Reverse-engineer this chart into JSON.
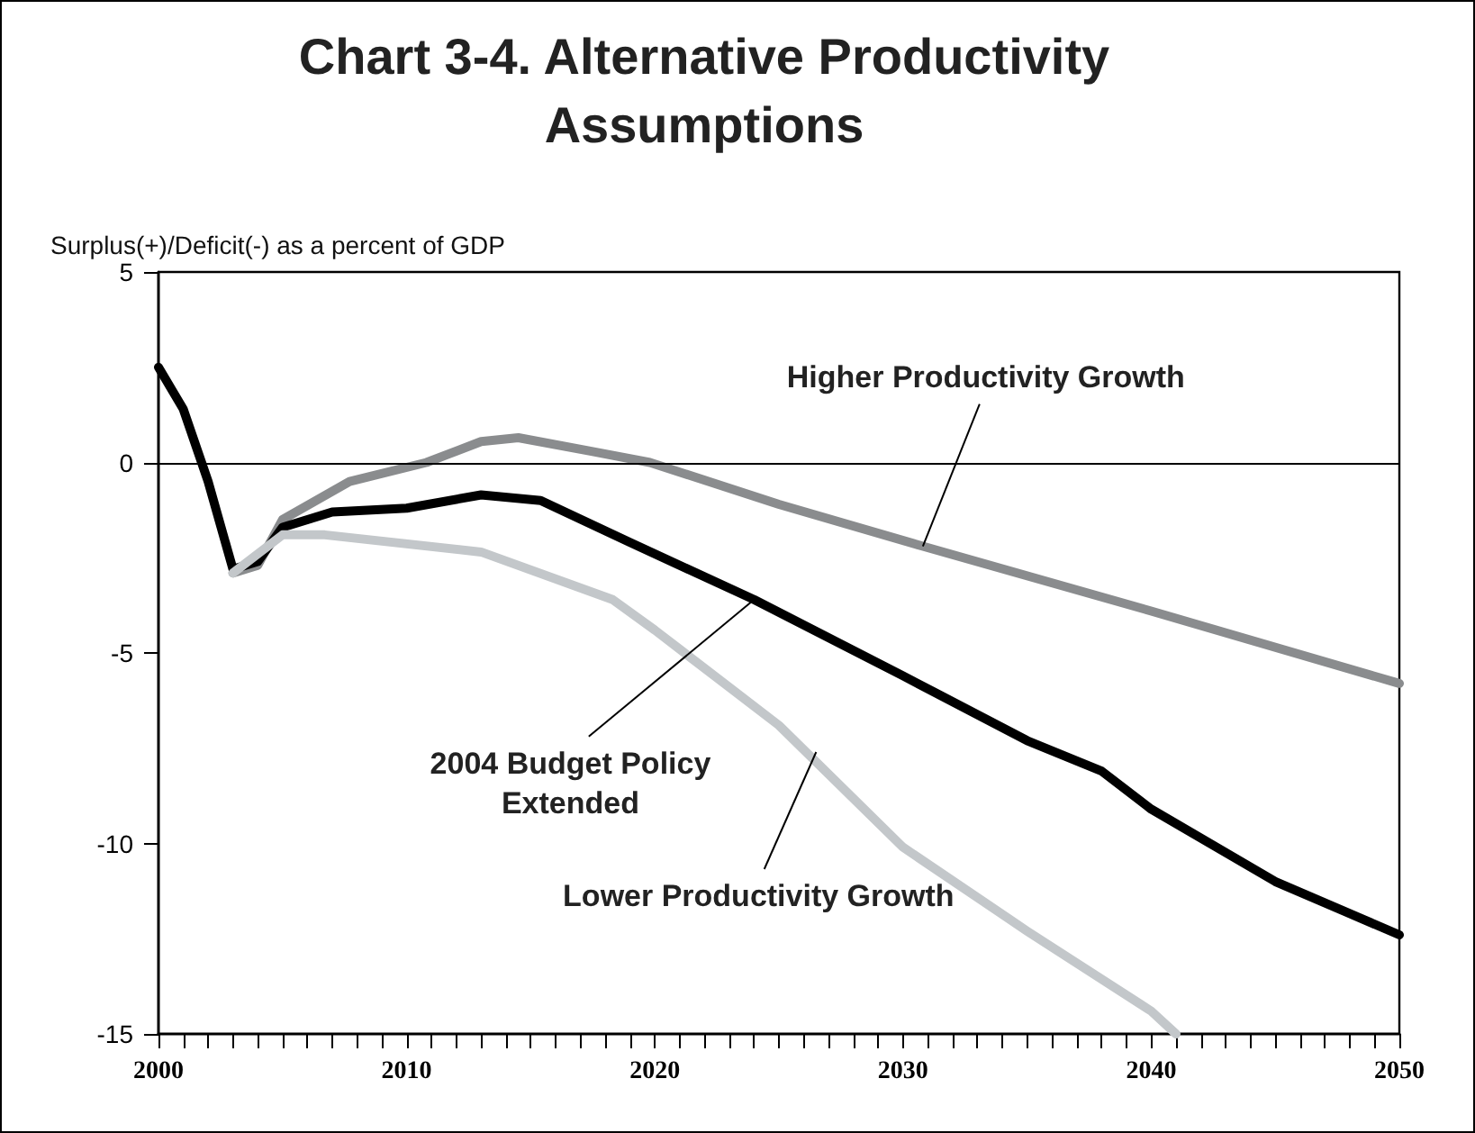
{
  "chart_data": {
    "type": "line",
    "title": "Chart 3-4.  Alternative Productivity Assumptions",
    "ylabel": "Surplus(+)/Deficit(-) as a percent of GDP",
    "xlim": [
      2000,
      2050
    ],
    "ylim": [
      -15,
      5
    ],
    "xticks": [
      2000,
      {
        "value": 2001,
        "label": null
      },
      {
        "value": 2002,
        "label": null
      },
      {
        "value": 2003,
        "label": null
      },
      {
        "value": 2004,
        "label": null
      },
      {
        "value": 2005,
        "label": null
      },
      {
        "value": 2006,
        "label": null
      },
      {
        "value": 2007,
        "label": null
      },
      {
        "value": 2008,
        "label": null
      },
      {
        "value": 2009,
        "label": null
      },
      2010,
      {
        "value": 2011,
        "label": null
      },
      {
        "value": 2012,
        "label": null
      },
      {
        "value": 2013,
        "label": null
      },
      {
        "value": 2014,
        "label": null
      },
      {
        "value": 2015,
        "label": null
      },
      {
        "value": 2016,
        "label": null
      },
      {
        "value": 2017,
        "label": null
      },
      {
        "value": 2018,
        "label": null
      },
      {
        "value": 2019,
        "label": null
      },
      2020,
      {
        "value": 2021,
        "label": null
      },
      {
        "value": 2022,
        "label": null
      },
      {
        "value": 2023,
        "label": null
      },
      {
        "value": 2024,
        "label": null
      },
      {
        "value": 2025,
        "label": null
      },
      {
        "value": 2026,
        "label": null
      },
      {
        "value": 2027,
        "label": null
      },
      {
        "value": 2028,
        "label": null
      },
      {
        "value": 2029,
        "label": null
      },
      2030,
      {
        "value": 2031,
        "label": null
      },
      {
        "value": 2032,
        "label": null
      },
      {
        "value": 2033,
        "label": null
      },
      {
        "value": 2034,
        "label": null
      },
      {
        "value": 2035,
        "label": null
      },
      {
        "value": 2036,
        "label": null
      },
      {
        "value": 2037,
        "label": null
      },
      {
        "value": 2038,
        "label": null
      },
      {
        "value": 2039,
        "label": null
      },
      2040,
      {
        "value": 2041,
        "label": null
      },
      {
        "value": 2042,
        "label": null
      },
      {
        "value": 2043,
        "label": null
      },
      {
        "value": 2044,
        "label": null
      },
      {
        "value": 2045,
        "label": null
      },
      {
        "value": 2046,
        "label": null
      },
      {
        "value": 2047,
        "label": null
      },
      {
        "value": 2048,
        "label": null
      },
      {
        "value": 2049,
        "label": null
      },
      2050
    ],
    "yticks": [
      -15,
      -10,
      -5,
      0,
      5
    ],
    "grid": false,
    "marker": "none",
    "line_style": "solid",
    "ref_lines": [
      {
        "axis": "y",
        "value": 0,
        "color": "#000000",
        "line_style": "solid"
      }
    ],
    "annotations": [
      {
        "text": "Higher Productivity Growth",
        "x": 2030.8,
        "y": -2.2
      },
      {
        "text": "2004 Budget Policy\nExtended",
        "x": 2024,
        "y": -3.6
      },
      {
        "text": "Lower Productivity Growth",
        "x": 2026.5,
        "y": -7.6
      }
    ],
    "series": [
      {
        "color": "#8a8c8e",
        "x": [
          2003,
          2004,
          2005,
          2007.7,
          2010.8,
          2013,
          2014.5,
          2017.4,
          2019.8,
          2025,
          2030.8,
          2040,
          2050
        ],
        "values": [
          -2.9,
          -2.7,
          -1.5,
          -0.5,
          0,
          0.55,
          0.65,
          0.3,
          0,
          -1.1,
          -2.2,
          -3.9,
          -5.8
        ]
      },
      {
        "color": "#000000",
        "x": [
          2000,
          2001,
          2002,
          2003,
          2004,
          2005,
          2007,
          2010,
          2013,
          2015.4,
          2019,
          2024,
          2030,
          2035,
          2038,
          2040,
          2045,
          2050
        ],
        "values": [
          2.5,
          1.4,
          -0.5,
          -2.8,
          -2.6,
          -1.7,
          -1.3,
          -1.2,
          -0.85,
          -1.0,
          -2.1,
          -3.6,
          -5.6,
          -7.3,
          -8.1,
          -9.1,
          -11,
          -12.4
        ]
      },
      {
        "color": "#c3c7ca",
        "x": [
          2003,
          2005,
          2006.7,
          2013,
          2018.3,
          2020,
          2025,
          2030,
          2035,
          2040,
          2041
        ],
        "values": [
          -2.9,
          -1.9,
          -1.9,
          -2.35,
          -3.6,
          -4.4,
          -6.9,
          -10.1,
          -12.3,
          -14.4,
          -15
        ]
      }
    ]
  }
}
